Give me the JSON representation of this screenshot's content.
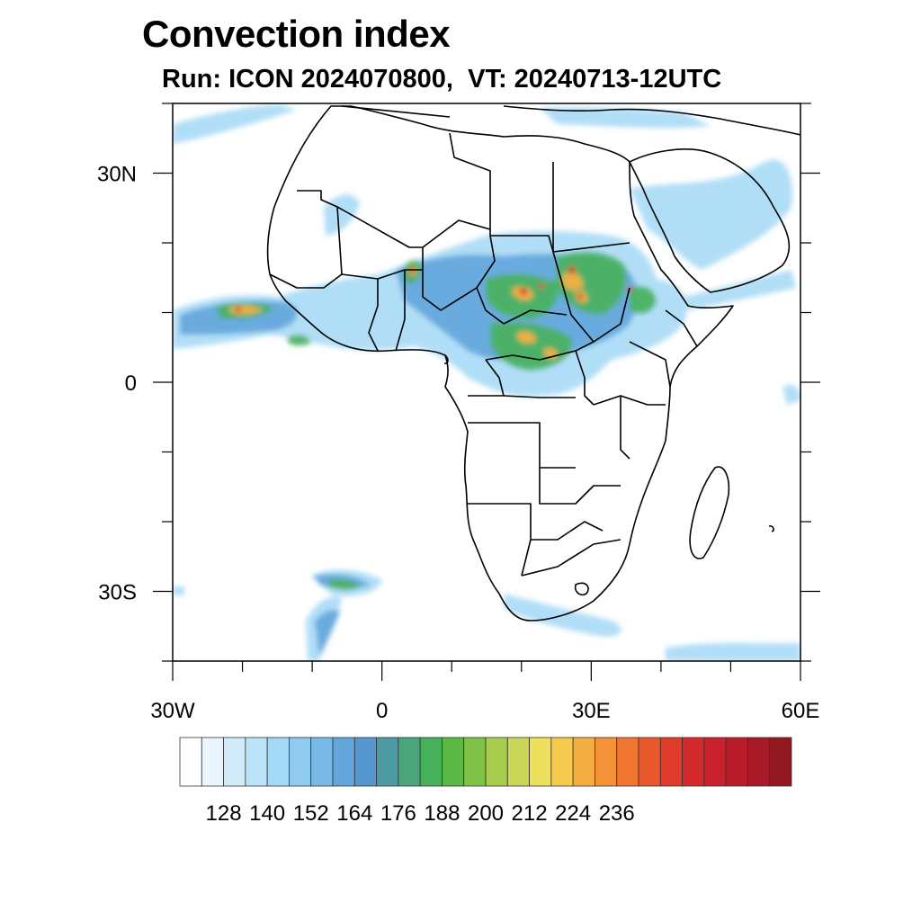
{
  "title": "Convection index",
  "subtitle": "Run: ICON 2024070800,  VT: 20240713-12UTC",
  "map": {
    "lon_range": [
      -30,
      60
    ],
    "lat_range": [
      -40,
      40
    ],
    "lon_ticks": [
      {
        "value": -30,
        "label": "30W"
      },
      {
        "value": 0,
        "label": "0"
      },
      {
        "value": 30,
        "label": "30E"
      },
      {
        "value": 60,
        "label": "60E"
      }
    ],
    "lat_ticks": [
      {
        "value": 30,
        "label": "30N"
      },
      {
        "value": 0,
        "label": "0"
      },
      {
        "value": -30,
        "label": "30S"
      }
    ],
    "minor_lon_step": 10,
    "minor_lat_step": 10,
    "region": "Africa",
    "coastline_color": "#000000"
  },
  "colorbar": {
    "colors": [
      "#ffffff",
      "#e9f6fd",
      "#d2ecfa",
      "#bce3f8",
      "#a4d9f6",
      "#8ecbef",
      "#78b9e6",
      "#63a6dc",
      "#5597cf",
      "#4d9aa3",
      "#4aa57a",
      "#47b15a",
      "#5bb845",
      "#80c147",
      "#a8cc4c",
      "#cad655",
      "#ece05c",
      "#f7cb4e",
      "#f5ae42",
      "#f49238",
      "#ef7530",
      "#e8582c",
      "#e03b2b",
      "#d52a2d",
      "#c8202d",
      "#b81c2a",
      "#a51a26",
      "#921822"
    ],
    "labels": [
      "128",
      "140",
      "152",
      "164",
      "176",
      "188",
      "200",
      "212",
      "224",
      "236"
    ],
    "label_every": 2,
    "label_start_boundary": 2
  }
}
